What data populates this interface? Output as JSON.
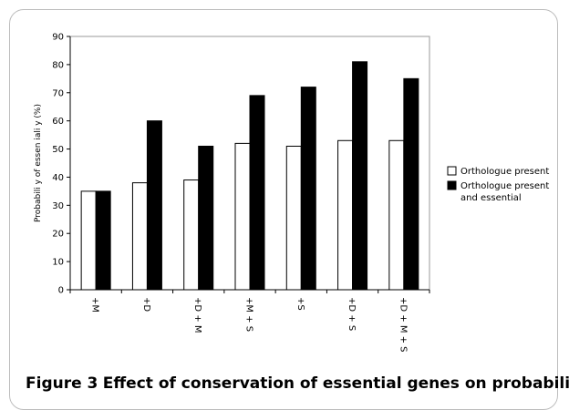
{
  "chart_data": {
    "type": "bar",
    "categories": [
      "+M",
      "+D",
      "+D + M",
      "+M + S",
      "+S",
      "+D + S",
      "+D + M + S"
    ],
    "series": [
      {
        "name": "Orthologue present",
        "values": [
          35,
          38,
          39,
          52,
          51,
          53,
          53
        ],
        "color": "#ffffff"
      },
      {
        "name": "Orthologue present and essential",
        "values": [
          35,
          60,
          51,
          69,
          72,
          81,
          75
        ],
        "color": "#000000"
      }
    ],
    "ylabel": "Probabili y of essen iali y (%)",
    "xlabel": "",
    "ylim": [
      0,
      90
    ],
    "yticks": [
      0,
      10,
      20,
      30,
      40,
      50,
      60,
      70,
      80,
      90
    ],
    "legend": [
      "Orthologue present",
      "Orthologue present",
      "and essential"
    ],
    "legend_position": "right"
  },
  "caption": {
    "prefix": "Figure 3",
    "text": "Effect of conservation of essential genes on probability"
  }
}
